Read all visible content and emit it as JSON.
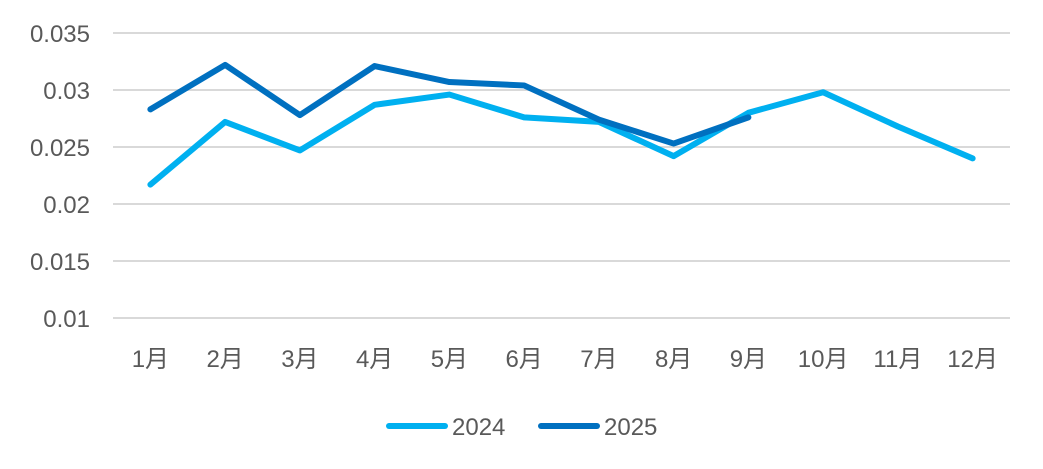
{
  "chart_data": {
    "type": "line",
    "title": "",
    "xlabel": "",
    "ylabel": "",
    "categories": [
      "1月",
      "2月",
      "3月",
      "4月",
      "5月",
      "6月",
      "7月",
      "8月",
      "9月",
      "10月",
      "11月",
      "12月"
    ],
    "series": [
      {
        "name": "2024",
        "color": "#00B0F0",
        "values": [
          0.0217,
          0.0272,
          0.0247,
          0.0287,
          0.0296,
          0.0276,
          0.0272,
          0.0242,
          0.028,
          0.0298,
          0.0268,
          0.024
        ]
      },
      {
        "name": "2025",
        "color": "#0070C0",
        "values": [
          0.0283,
          0.0322,
          0.0278,
          0.0321,
          0.0307,
          0.0304,
          0.0274,
          0.0253,
          0.0276
        ]
      }
    ],
    "ylim": [
      0.01,
      0.035
    ],
    "yticks": [
      "0.01",
      "0.015",
      "0.02",
      "0.025",
      "0.03",
      "0.035"
    ],
    "ytick_values": [
      0.01,
      0.015,
      0.02,
      0.025,
      0.03,
      0.035
    ],
    "grid": true,
    "gridline_color": "#D9D9D9",
    "legend_position": "bottom"
  }
}
